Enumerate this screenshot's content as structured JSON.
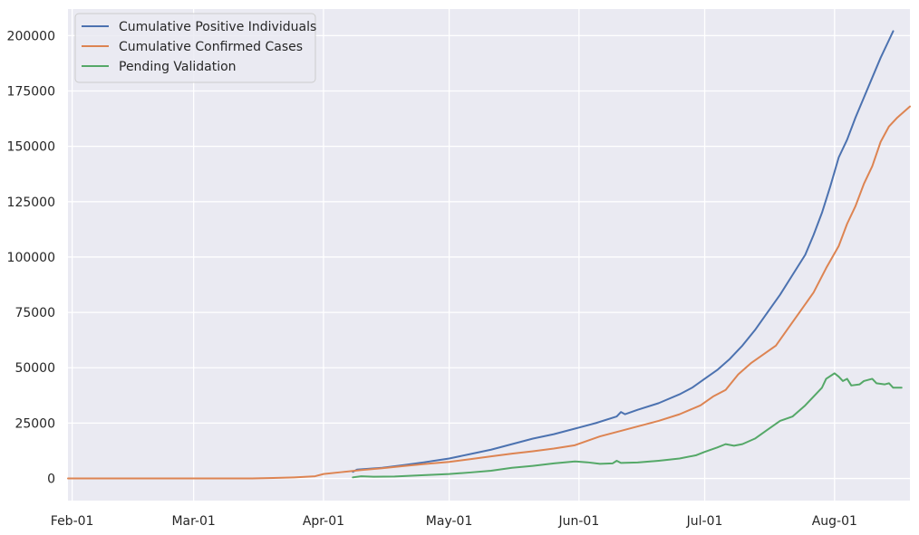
{
  "chart_data": {
    "type": "line",
    "title": "",
    "xlabel": "",
    "ylabel": "",
    "x_axis": {
      "type": "date",
      "range": [
        "2020-01-31",
        "2020-08-19"
      ],
      "ticks": [
        {
          "date": "2020-02-01",
          "label": "Feb-01"
        },
        {
          "date": "2020-03-01",
          "label": "Mar-01"
        },
        {
          "date": "2020-04-01",
          "label": "Apr-01"
        },
        {
          "date": "2020-05-01",
          "label": "May-01"
        },
        {
          "date": "2020-06-01",
          "label": "Jun-01"
        },
        {
          "date": "2020-07-01",
          "label": "Jul-01"
        },
        {
          "date": "2020-08-01",
          "label": "Aug-01"
        }
      ]
    },
    "y_axis": {
      "range": [
        -10000,
        212000
      ],
      "ticks": [
        0,
        25000,
        50000,
        75000,
        100000,
        125000,
        150000,
        175000,
        200000
      ]
    },
    "grid": true,
    "legend_position": "top-left",
    "background_color": "#eaeaf2",
    "series": [
      {
        "name": "Cumulative Positive Individuals",
        "color": "#4c72b0",
        "points": [
          [
            "2020-04-08",
            3000
          ],
          [
            "2020-04-09",
            4000
          ],
          [
            "2020-04-15",
            4800
          ],
          [
            "2020-04-20",
            6000
          ],
          [
            "2020-04-25",
            7300
          ],
          [
            "2020-05-01",
            9000
          ],
          [
            "2020-05-06",
            11000
          ],
          [
            "2020-05-11",
            13000
          ],
          [
            "2020-05-16",
            15500
          ],
          [
            "2020-05-21",
            18000
          ],
          [
            "2020-05-26",
            20000
          ],
          [
            "2020-06-01",
            23000
          ],
          [
            "2020-06-05",
            25000
          ],
          [
            "2020-06-10",
            28000
          ],
          [
            "2020-06-11",
            30000
          ],
          [
            "2020-06-12",
            29000
          ],
          [
            "2020-06-15",
            31000
          ],
          [
            "2020-06-20",
            34000
          ],
          [
            "2020-06-25",
            38000
          ],
          [
            "2020-06-28",
            41000
          ],
          [
            "2020-07-01",
            45000
          ],
          [
            "2020-07-04",
            49000
          ],
          [
            "2020-07-07",
            54000
          ],
          [
            "2020-07-10",
            60000
          ],
          [
            "2020-07-13",
            67000
          ],
          [
            "2020-07-16",
            75000
          ],
          [
            "2020-07-19",
            83000
          ],
          [
            "2020-07-22",
            92000
          ],
          [
            "2020-07-25",
            101000
          ],
          [
            "2020-07-27",
            110000
          ],
          [
            "2020-07-29",
            120000
          ],
          [
            "2020-07-31",
            132000
          ],
          [
            "2020-08-02",
            145000
          ],
          [
            "2020-08-04",
            153000
          ],
          [
            "2020-08-06",
            163000
          ],
          [
            "2020-08-08",
            172000
          ],
          [
            "2020-08-10",
            181000
          ],
          [
            "2020-08-12",
            190000
          ],
          [
            "2020-08-14",
            198000
          ],
          [
            "2020-08-15",
            202000
          ]
        ]
      },
      {
        "name": "Cumulative Confirmed Cases",
        "color": "#dd8452",
        "points": [
          [
            "2020-01-31",
            0
          ],
          [
            "2020-03-15",
            0
          ],
          [
            "2020-03-20",
            200
          ],
          [
            "2020-03-25",
            500
          ],
          [
            "2020-03-30",
            1000
          ],
          [
            "2020-04-01",
            2000
          ],
          [
            "2020-04-05",
            2800
          ],
          [
            "2020-04-10",
            3800
          ],
          [
            "2020-04-15",
            4600
          ],
          [
            "2020-04-20",
            5600
          ],
          [
            "2020-04-25",
            6500
          ],
          [
            "2020-05-01",
            7500
          ],
          [
            "2020-05-06",
            8700
          ],
          [
            "2020-05-11",
            10000
          ],
          [
            "2020-05-16",
            11200
          ],
          [
            "2020-05-21",
            12300
          ],
          [
            "2020-05-26",
            13500
          ],
          [
            "2020-05-31",
            15000
          ],
          [
            "2020-06-03",
            17000
          ],
          [
            "2020-06-06",
            19000
          ],
          [
            "2020-06-10",
            21000
          ],
          [
            "2020-06-15",
            23500
          ],
          [
            "2020-06-20",
            26000
          ],
          [
            "2020-06-25",
            29000
          ],
          [
            "2020-06-30",
            33000
          ],
          [
            "2020-07-03",
            37000
          ],
          [
            "2020-07-06",
            40000
          ],
          [
            "2020-07-09",
            47000
          ],
          [
            "2020-07-12",
            52000
          ],
          [
            "2020-07-15",
            56000
          ],
          [
            "2020-07-18",
            60000
          ],
          [
            "2020-07-21",
            68000
          ],
          [
            "2020-07-24",
            76000
          ],
          [
            "2020-07-27",
            84000
          ],
          [
            "2020-07-30",
            95000
          ],
          [
            "2020-08-02",
            105000
          ],
          [
            "2020-08-04",
            115000
          ],
          [
            "2020-08-06",
            123000
          ],
          [
            "2020-08-08",
            133000
          ],
          [
            "2020-08-10",
            141000
          ],
          [
            "2020-08-12",
            152000
          ],
          [
            "2020-08-14",
            159000
          ],
          [
            "2020-08-16",
            163000
          ],
          [
            "2020-08-19",
            168000
          ]
        ]
      },
      {
        "name": "Pending Validation",
        "color": "#55a868",
        "points": [
          [
            "2020-04-08",
            500
          ],
          [
            "2020-04-10",
            1000
          ],
          [
            "2020-04-13",
            800
          ],
          [
            "2020-04-18",
            900
          ],
          [
            "2020-04-25",
            1500
          ],
          [
            "2020-05-01",
            2000
          ],
          [
            "2020-05-06",
            2700
          ],
          [
            "2020-05-11",
            3500
          ],
          [
            "2020-05-16",
            4800
          ],
          [
            "2020-05-21",
            5700
          ],
          [
            "2020-05-26",
            6800
          ],
          [
            "2020-05-31",
            7700
          ],
          [
            "2020-06-03",
            7300
          ],
          [
            "2020-06-06",
            6600
          ],
          [
            "2020-06-09",
            6800
          ],
          [
            "2020-06-10",
            8000
          ],
          [
            "2020-06-11",
            7000
          ],
          [
            "2020-06-15",
            7200
          ],
          [
            "2020-06-20",
            8000
          ],
          [
            "2020-06-25",
            9000
          ],
          [
            "2020-06-29",
            10500
          ],
          [
            "2020-07-01",
            12000
          ],
          [
            "2020-07-04",
            14000
          ],
          [
            "2020-07-06",
            15500
          ],
          [
            "2020-07-08",
            14800
          ],
          [
            "2020-07-10",
            15500
          ],
          [
            "2020-07-13",
            18000
          ],
          [
            "2020-07-16",
            22000
          ],
          [
            "2020-07-19",
            26000
          ],
          [
            "2020-07-22",
            28000
          ],
          [
            "2020-07-25",
            33000
          ],
          [
            "2020-07-27",
            37000
          ],
          [
            "2020-07-29",
            41000
          ],
          [
            "2020-07-30",
            45000
          ],
          [
            "2020-08-01",
            47500
          ],
          [
            "2020-08-02",
            46000
          ],
          [
            "2020-08-03",
            44000
          ],
          [
            "2020-08-04",
            45000
          ],
          [
            "2020-08-05",
            42000
          ],
          [
            "2020-08-07",
            42500
          ],
          [
            "2020-08-08",
            44000
          ],
          [
            "2020-08-10",
            45000
          ],
          [
            "2020-08-11",
            43000
          ],
          [
            "2020-08-13",
            42500
          ],
          [
            "2020-08-14",
            43000
          ],
          [
            "2020-08-15",
            41000
          ],
          [
            "2020-08-17",
            41000
          ]
        ]
      }
    ]
  }
}
